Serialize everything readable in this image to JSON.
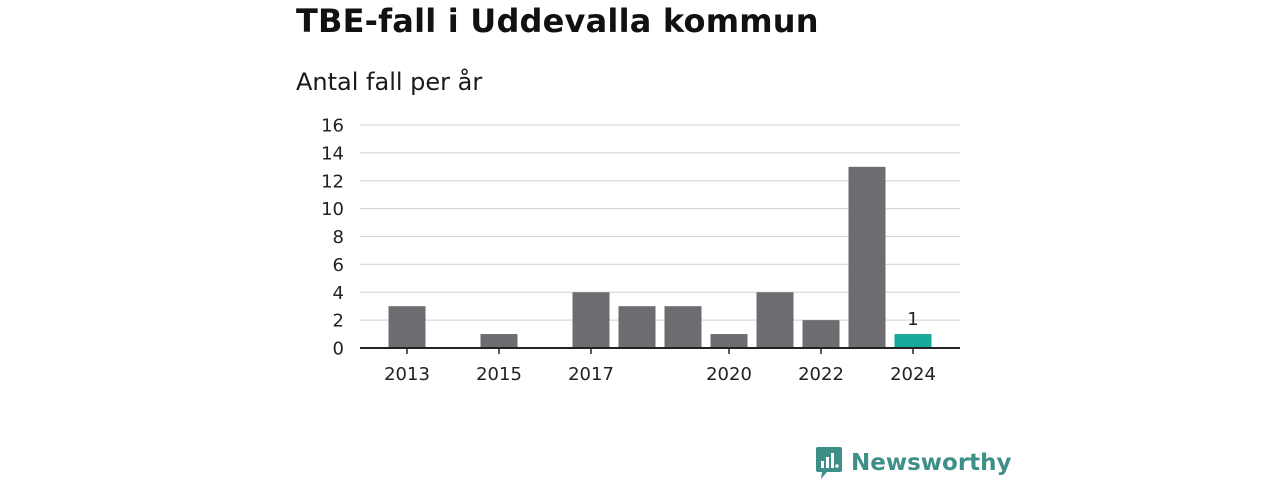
{
  "title": "TBE-fall i Uddevalla kommun",
  "subtitle": "Antal fall per år",
  "brand": {
    "name": "Newsworthy",
    "logo": "newsworthy-logo-icon",
    "color": "#3f8f89"
  },
  "chart_data": {
    "type": "bar",
    "categories": [
      "2013",
      "2014",
      "2015",
      "2016",
      "2017",
      "2018",
      "2019",
      "2020",
      "2021",
      "2022",
      "2023",
      "2024"
    ],
    "x_tick_labels": [
      "2013",
      "",
      "2015",
      "",
      "2017",
      "",
      "",
      "2020",
      "",
      "2022",
      "",
      "2024"
    ],
    "values": [
      3,
      0,
      1,
      0,
      4,
      3,
      3,
      1,
      4,
      2,
      13,
      1
    ],
    "data_labels": [
      {
        "category": "2024",
        "text": "1"
      }
    ],
    "highlight_category": "2024",
    "colors": {
      "default": "#6d6c71",
      "highlight": "#18a99a",
      "grid": "#d9d9d9",
      "axis": "#222222"
    },
    "ylim": [
      0,
      16
    ],
    "yticks": [
      0,
      2,
      4,
      6,
      8,
      10,
      12,
      14,
      16
    ],
    "grid": true,
    "legend": "none",
    "xlabel": "",
    "ylabel": ""
  }
}
